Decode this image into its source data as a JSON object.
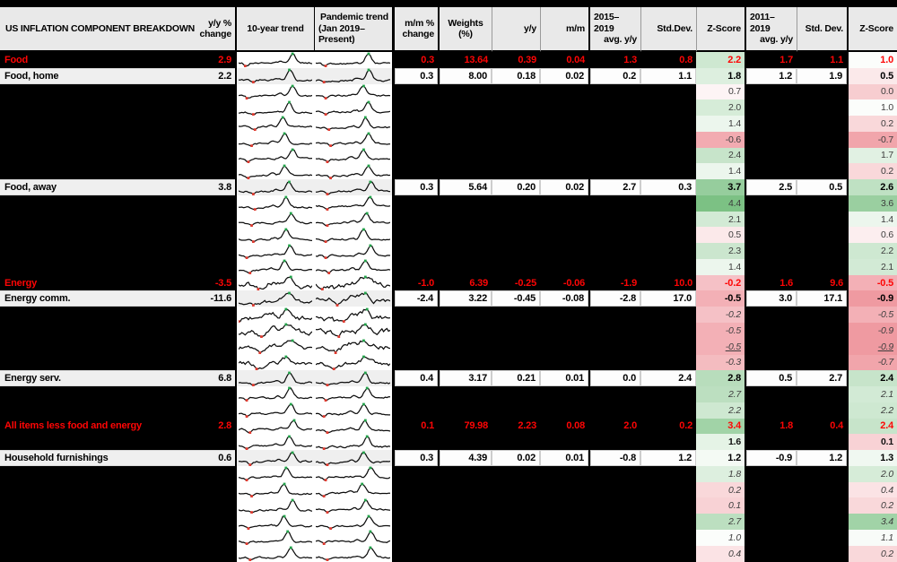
{
  "title": "US INFLATION COMPONENT BREAKDOWN",
  "header": {
    "title": {
      "l1": "US INFLATION COMPONENT BREAKDOWN"
    },
    "yy": {
      "l1": "y/y %",
      "l2": "change"
    },
    "trend10": {
      "l1": "10-year trend"
    },
    "pandemic": {
      "l1": "Pandemic trend",
      "l2": "(Jan 2019–Present)"
    },
    "mm": {
      "l1": "m/m %",
      "l2": "change"
    },
    "weights": {
      "l1": "Weights",
      "l2": "(%)"
    },
    "yyc": {
      "l1": "y/y"
    },
    "mmc": {
      "l1": "m/m"
    },
    "avg1": {
      "l1": "2015–2019",
      "l2": "avg. y/y"
    },
    "std1": {
      "l1": "Std.Dev."
    },
    "z1": {
      "l1": "Z-Score"
    },
    "avg2": {
      "l1": "2011–2019",
      "l2": "avg. y/y"
    },
    "std2": {
      "l1": "Std. Dev."
    },
    "z2": {
      "l1": "Z-Score"
    }
  },
  "colors": {
    "black_bg": "#000000",
    "header_bg": "#e9e9e9",
    "sub_row_bg": "#efefef",
    "accent_red": "#fe0505",
    "z_green_max": "#7cc184",
    "z_pink_max": "#ef9aa1",
    "spark_line": "#0d0d0d",
    "spark_max_marker": "#21a249",
    "spark_min_marker": "#e03a2f"
  },
  "chart_data": {
    "type": "table",
    "title": "US INFLATION COMPONENT BREAKDOWN",
    "columns": [
      "US INFLATION COMPONENT BREAKDOWN",
      "y/y % change",
      "10-year trend",
      "Pandemic trend (Jan 2019–Present)",
      "m/m % change",
      "Weights (%)",
      "y/y",
      "m/m",
      "2015–2019 avg. y/y",
      "Std.Dev.",
      "Z-Score",
      "2011–2019 avg. y/y",
      "Std. Dev.",
      "Z-Score"
    ],
    "rows": [
      {
        "label": "Food",
        "yy": "2.9",
        "mm": "0.3",
        "w": "13.64",
        "yyc": "0.39",
        "mmc": "0.04",
        "a1": "1.3",
        "sd1": "0.8",
        "z1": "2.2",
        "a2": "1.7",
        "sd2": "1.1",
        "z2": "1.0",
        "row_type": "main",
        "z_style": "regular",
        "spark_style": "hump"
      },
      {
        "label": "Food, home",
        "yy": "2.2",
        "mm": "0.3",
        "w": "8.00",
        "yyc": "0.18",
        "mmc": "0.02",
        "a1": "0.2",
        "sd1": "1.1",
        "z1": "1.8",
        "a2": "1.2",
        "sd2": "1.9",
        "z2": "0.5",
        "row_type": "sub",
        "z_style": "regular",
        "spark_style": "hump"
      },
      {
        "z1": "0.7",
        "z2": "0.0",
        "row_type": "hidden",
        "z_style": "regular",
        "spark_style": "hump"
      },
      {
        "z1": "2.0",
        "z2": "1.0",
        "row_type": "hidden",
        "z_style": "regular",
        "spark_style": "hump"
      },
      {
        "z1": "1.4",
        "z2": "0.2",
        "row_type": "hidden",
        "z_style": "regular",
        "spark_style": "hump"
      },
      {
        "z1": "-0.6",
        "z2": "-0.7",
        "row_type": "hidden",
        "z_style": "regular",
        "spark_style": "hump"
      },
      {
        "z1": "2.4",
        "z2": "1.7",
        "row_type": "hidden",
        "z_style": "regular",
        "spark_style": "hump"
      },
      {
        "z1": "1.4",
        "z2": "0.2",
        "row_type": "hidden",
        "z_style": "regular",
        "spark_style": "hump"
      },
      {
        "label": "Food, away",
        "yy": "3.8",
        "mm": "0.3",
        "w": "5.64",
        "yyc": "0.20",
        "mmc": "0.02",
        "a1": "2.7",
        "sd1": "0.3",
        "z1": "3.7",
        "a2": "2.5",
        "sd2": "0.5",
        "z2": "2.6",
        "row_type": "sub",
        "z_style": "regular",
        "spark_style": "hump"
      },
      {
        "z1": "4.4",
        "z2": "3.6",
        "row_type": "hidden",
        "z_style": "regular",
        "spark_style": "hump"
      },
      {
        "z1": "2.1",
        "z2": "1.4",
        "row_type": "hidden",
        "z_style": "regular",
        "spark_style": "hump"
      },
      {
        "z1": "0.5",
        "z2": "0.6",
        "row_type": "hidden",
        "z_style": "regular",
        "spark_style": "hump"
      },
      {
        "z1": "2.3",
        "z2": "2.2",
        "row_type": "hidden",
        "z_style": "regular",
        "spark_style": "hump"
      },
      {
        "z1": "1.4",
        "z2": "2.1",
        "row_type": "hidden",
        "z_style": "regular",
        "spark_style": "hump"
      },
      {
        "label": "Energy",
        "yy": "-3.5",
        "mm": "-1.0",
        "w": "6.39",
        "yyc": "-0.25",
        "mmc": "-0.06",
        "a1": "-1.9",
        "sd1": "10.0",
        "z1": "-0.2",
        "a2": "1.6",
        "sd2": "9.6",
        "z2": "-0.5",
        "row_type": "main",
        "z_style": "regular",
        "spark_style": "volatile"
      },
      {
        "label": "Energy comm.",
        "yy": "-11.6",
        "mm": "-2.4",
        "w": "3.22",
        "yyc": "-0.45",
        "mmc": "-0.08",
        "a1": "-2.8",
        "sd1": "17.0",
        "z1": "-0.5",
        "a2": "3.0",
        "sd2": "17.1",
        "z2": "-0.9",
        "row_type": "sub",
        "z_style": "regular",
        "spark_style": "volatile"
      },
      {
        "z1": "-0.2",
        "z2": "-0.5",
        "row_type": "hidden",
        "z_style": "italic",
        "spark_style": "volatile"
      },
      {
        "z1": "-0.5",
        "z2": "-0.9",
        "row_type": "hidden",
        "z_style": "italic",
        "spark_style": "volatile"
      },
      {
        "z1": "-0.5",
        "z2": "-0.9",
        "row_type": "hidden",
        "z_style": "italic underline",
        "spark_style": "volatile"
      },
      {
        "z1": "-0.3",
        "z2": "-0.7",
        "row_type": "hidden",
        "z_style": "italic",
        "spark_style": "volatile"
      },
      {
        "label": "Energy serv.",
        "yy": "6.8",
        "mm": "0.4",
        "w": "3.17",
        "yyc": "0.21",
        "mmc": "0.01",
        "a1": "0.0",
        "sd1": "2.4",
        "z1": "2.8",
        "a2": "0.5",
        "sd2": "2.7",
        "z2": "2.4",
        "row_type": "sub",
        "z_style": "regular",
        "spark_style": "hump"
      },
      {
        "z1": "2.7",
        "z2": "2.1",
        "row_type": "hidden",
        "z_style": "italic",
        "spark_style": "hump"
      },
      {
        "z1": "2.2",
        "z2": "2.2",
        "row_type": "hidden",
        "z_style": "italic",
        "spark_style": "hump"
      },
      {
        "label": "All items less food and energy",
        "yy": "2.8",
        "mm": "0.1",
        "w": "79.98",
        "yyc": "2.23",
        "mmc": "0.08",
        "a1": "2.0",
        "sd1": "0.2",
        "z1": "3.4",
        "a2": "1.8",
        "sd2": "0.4",
        "z2": "2.4",
        "row_type": "main",
        "z_style": "regular",
        "spark_style": "hump"
      },
      {
        "z1": "1.6",
        "z2": "0.1",
        "row_type": "hidden",
        "z_style": "bold",
        "spark_style": "hump"
      },
      {
        "label": "Household furnishings",
        "yy": "0.6",
        "mm": "0.3",
        "w": "4.39",
        "yyc": "0.02",
        "mmc": "0.01",
        "a1": "-0.8",
        "sd1": "1.2",
        "z1": "1.2",
        "a2": "-0.9",
        "sd2": "1.2",
        "z2": "1.3",
        "row_type": "sub",
        "z_style": "regular",
        "spark_style": "hump"
      },
      {
        "z1": "1.8",
        "z2": "2.0",
        "row_type": "hidden",
        "z_style": "italic",
        "spark_style": "hump"
      },
      {
        "z1": "0.2",
        "z2": "0.4",
        "row_type": "hidden",
        "z_style": "italic",
        "spark_style": "hump"
      },
      {
        "z1": "0.1",
        "z2": "0.2",
        "row_type": "hidden",
        "z_style": "italic",
        "spark_style": "hump"
      },
      {
        "z1": "2.7",
        "z2": "3.4",
        "row_type": "hidden",
        "z_style": "italic",
        "spark_style": "hump"
      },
      {
        "z1": "1.0",
        "z2": "1.1",
        "row_type": "hidden",
        "z_style": "italic",
        "spark_style": "hump"
      },
      {
        "z1": "0.4",
        "z2": "0.2",
        "row_type": "hidden",
        "z_style": "italic",
        "spark_style": "hump"
      }
    ]
  }
}
